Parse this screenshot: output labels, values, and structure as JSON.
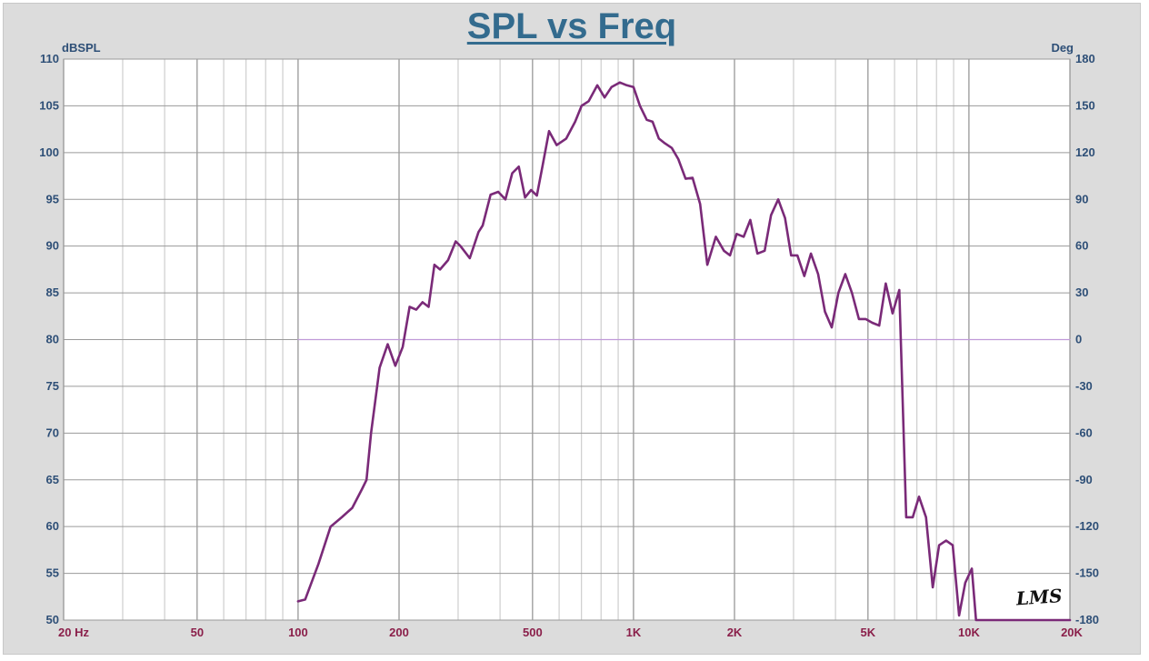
{
  "chart_data": {
    "type": "line",
    "title": "SPL vs Freq",
    "ylabel": "dBSPL",
    "y2label": "Deg",
    "x_scale": "log",
    "xlim": [
      20,
      20000
    ],
    "ylim": [
      50,
      110
    ],
    "y2lim": [
      -180,
      180
    ],
    "grid": true,
    "x_ticks": [
      {
        "value": 20,
        "label": "20  Hz"
      },
      {
        "value": 50,
        "label": "50"
      },
      {
        "value": 100,
        "label": "100"
      },
      {
        "value": 200,
        "label": "200"
      },
      {
        "value": 500,
        "label": "500"
      },
      {
        "value": 1000,
        "label": "1K"
      },
      {
        "value": 2000,
        "label": "2K"
      },
      {
        "value": 5000,
        "label": "5K"
      },
      {
        "value": 10000,
        "label": "10K"
      },
      {
        "value": 20000,
        "label": "20K"
      }
    ],
    "y_ticks": [
      110,
      105,
      100,
      95,
      90,
      85,
      80,
      75,
      70,
      65,
      60,
      55,
      50
    ],
    "y2_ticks": [
      180,
      150,
      120,
      90,
      60,
      30,
      0,
      -30,
      -60,
      -90,
      -120,
      -150,
      -180
    ],
    "series": [
      {
        "color": "#7a2a78",
        "x": [
          100,
          105,
          115,
          125,
          135,
          145,
          155,
          160,
          165,
          175,
          185,
          195,
          205,
          215,
          225,
          235,
          245,
          255,
          265,
          280,
          295,
          305,
          325,
          345,
          355,
          375,
          395,
          415,
          435,
          455,
          475,
          495,
          515,
          535,
          560,
          590,
          630,
          670,
          700,
          735,
          780,
          820,
          860,
          910,
          955,
          1000,
          1045,
          1095,
          1140,
          1190,
          1240,
          1300,
          1360,
          1430,
          1500,
          1580,
          1660,
          1760,
          1860,
          1940,
          2030,
          2130,
          2230,
          2340,
          2460,
          2570,
          2700,
          2830,
          2950,
          3080,
          3230,
          3380,
          3550,
          3720,
          3900,
          4080,
          4280,
          4480,
          4700,
          4920,
          5150,
          5400,
          5650,
          5920,
          6200,
          6500,
          6800,
          7100,
          7450,
          7800,
          8150,
          8550,
          8950,
          9350,
          9750,
          10200,
          10500,
          10750,
          11100,
          11600,
          12100,
          12600,
          13200,
          13700,
          14300,
          15000,
          15700,
          16300,
          17100,
          17800,
          18500,
          19200,
          20000
        ],
        "values": [
          52.0,
          52.2,
          56,
          60.0,
          61.0,
          62.0,
          64.0,
          65.0,
          70.0,
          77.0,
          79.5,
          77.2,
          79.2,
          83.5,
          83.2,
          84.0,
          83.5,
          88.0,
          87.5,
          88.5,
          90.5,
          90.0,
          88.7,
          91.5,
          92.2,
          95.5,
          95.8,
          95.0,
          97.8,
          98.5,
          95.2,
          96.0,
          95.4,
          98.5,
          102.3,
          100.8,
          101.5,
          103.3,
          105.0,
          105.5,
          107.2,
          105.9,
          107.0,
          107.5,
          107.2,
          107.0,
          105.0,
          103.5,
          103.3,
          101.5,
          101.0,
          100.5,
          99.3,
          97.2,
          97.3,
          94.5,
          88.0,
          91.0,
          89.5,
          89.0,
          91.3,
          91.0,
          92.8,
          89.2,
          89.5,
          93.3,
          95.0,
          93.0,
          89.0,
          89.0,
          86.8,
          89.2,
          87.0,
          83.0,
          81.3,
          85.0,
          87.0,
          85.0,
          82.2,
          82.2,
          81.8,
          81.5,
          86.0,
          82.8,
          85.3,
          61.0,
          61.0,
          63.2,
          61.0,
          53.5,
          58.0,
          58.5,
          58.0,
          50.5,
          54.0,
          55.5,
          50.0,
          50,
          50,
          50,
          50,
          50,
          50,
          50,
          50,
          50,
          50,
          50,
          50,
          50,
          50,
          50,
          50
        ]
      },
      {
        "color": "#c09ad8",
        "x": [
          100,
          20000
        ],
        "values": [
          80,
          80
        ]
      }
    ]
  },
  "watermark": "LMS"
}
